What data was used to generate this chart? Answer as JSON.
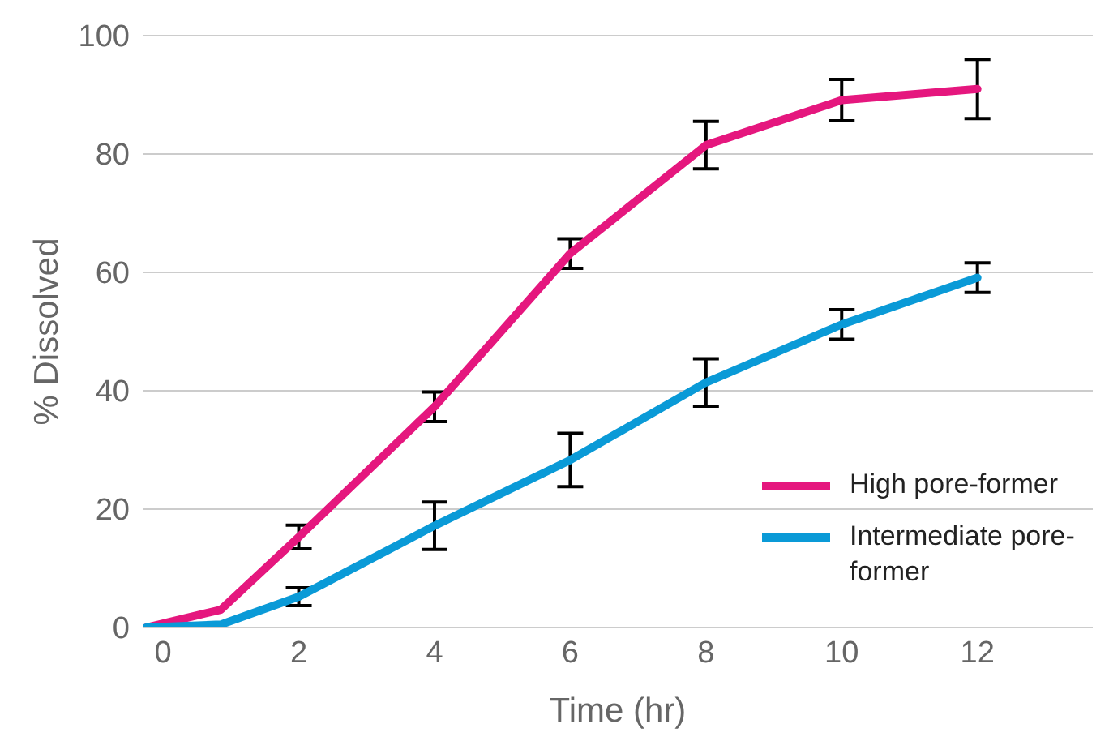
{
  "chart_data": {
    "type": "line",
    "xlabel": "Time (hr)",
    "ylabel": "% Dissolved",
    "xlim": [
      -0.3,
      13.7
    ],
    "xticks": [
      0,
      2,
      4,
      6,
      8,
      10,
      12
    ],
    "ylim": [
      0,
      100
    ],
    "yticks": [
      0,
      20,
      40,
      60,
      80,
      100
    ],
    "grid": "y",
    "legend": "right",
    "marker": "none",
    "line_style": "solid",
    "series": [
      {
        "name": "High pore-former",
        "color": "#e5177e",
        "x": [
          -0.25,
          0.85,
          2,
          4,
          6,
          8,
          10,
          12
        ],
        "values": [
          0,
          3,
          15.3,
          37.3,
          63.2,
          81.5,
          89.1,
          91
        ],
        "errors": [
          null,
          null,
          2,
          2.5,
          2.5,
          4,
          3.5,
          5
        ]
      },
      {
        "name": "Intermediate pore-former",
        "color": "#0a9ad7",
        "x": [
          -0.25,
          0.85,
          2,
          4,
          6,
          8,
          10,
          12
        ],
        "values": [
          0,
          0.5,
          5.2,
          17.2,
          28.3,
          41.4,
          51.2,
          59.1
        ],
        "errors": [
          null,
          null,
          1.5,
          4,
          4.5,
          4,
          2.5,
          2.5
        ]
      }
    ]
  }
}
